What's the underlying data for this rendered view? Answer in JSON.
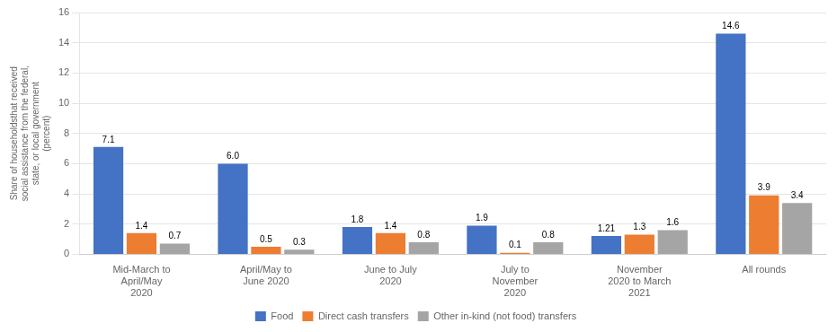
{
  "chart_data": {
    "type": "bar",
    "categories": [
      "Mid-March to\nApril/May\n2020",
      "April/May to\nJune 2020",
      "June to July\n2020",
      "July to\nNovember\n2020",
      "November\n2020 to March\n2021",
      "All rounds"
    ],
    "series": [
      {
        "name": "Food",
        "color": "#4472C4",
        "values": [
          7.1,
          6.0,
          1.8,
          1.9,
          1.21,
          14.6
        ],
        "value_labels": [
          "7.1",
          "6.0",
          "1.8",
          "1.9",
          "1.21",
          "14.6"
        ]
      },
      {
        "name": "Direct cash transfers",
        "color": "#ED7D31",
        "values": [
          1.4,
          0.5,
          1.4,
          0.1,
          1.3,
          3.9
        ]
      },
      {
        "name": "Other in-kind (not food) transfers",
        "color": "#A5A5A5",
        "values": [
          0.7,
          0.3,
          0.8,
          0.8,
          1.6,
          3.4
        ]
      }
    ],
    "ylabel": "Share of householdsthat received\nsocial assistance from the federal,\nstate, or local government\n(percent)",
    "ylim": [
      0,
      16
    ],
    "yticks": [
      0,
      2,
      4,
      6,
      8,
      10,
      12,
      14,
      16
    ],
    "grid": true,
    "legend": "bottom",
    "data_labels": true
  }
}
